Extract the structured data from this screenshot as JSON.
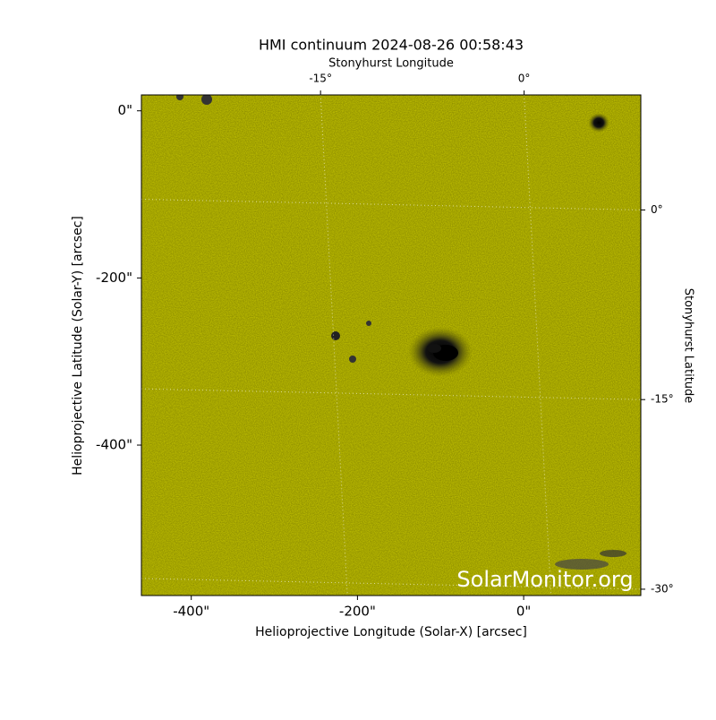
{
  "chart_data": {
    "type": "image",
    "title": "HMI continuum 2024-08-26 00:58:43",
    "x_label": "Helioprojective Longitude (Solar-X) [arcsec]",
    "y_label": "Helioprojective Latitude (Solar-Y) [arcsec]",
    "top_label": "Stonyhurst Longitude",
    "right_label": "Stonyhurst Latitude",
    "watermark": "SolarMonitor.org",
    "color": "#c8c800",
    "xlim": [
      -460,
      141
    ],
    "ylim": [
      -580,
      19
    ],
    "xticks": [
      {
        "value": -400,
        "label": "-400\""
      },
      {
        "value": -200,
        "label": "-200\""
      },
      {
        "value": 0,
        "label": "0\""
      }
    ],
    "yticks": [
      {
        "value": 0,
        "label": "0\""
      },
      {
        "value": -200,
        "label": "-200\""
      },
      {
        "value": -400,
        "label": "-400\""
      }
    ],
    "top_xlim": [
      -28.2,
      8.6
    ],
    "top_xticks": [
      {
        "value": -15,
        "label": "-15°"
      },
      {
        "value": 0,
        "label": "0°"
      }
    ],
    "right_ylim": [
      -30.5,
      9.1
    ],
    "right_yticks": [
      {
        "value": 0,
        "label": "0°"
      },
      {
        "value": -15,
        "label": "-15°"
      },
      {
        "value": -30,
        "label": "-30°"
      }
    ]
  }
}
